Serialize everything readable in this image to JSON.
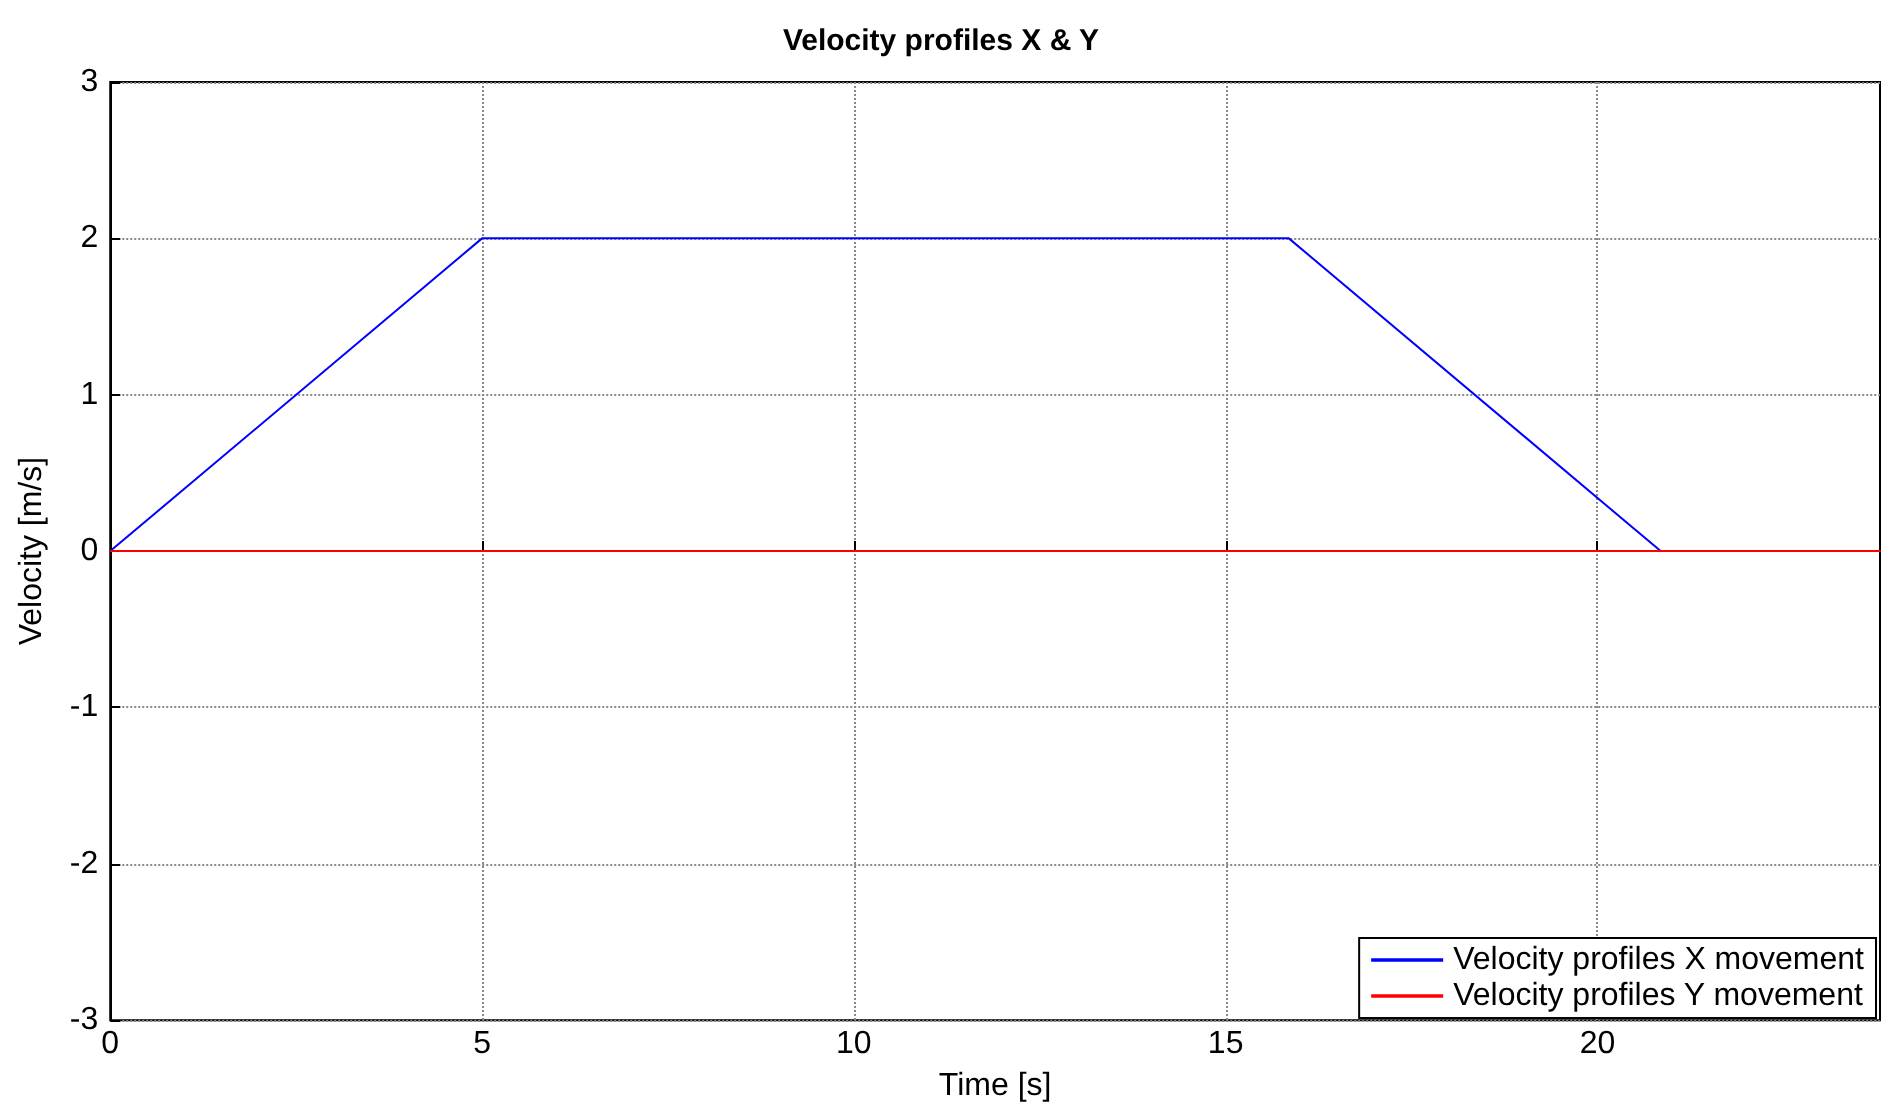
{
  "chart_data": {
    "type": "line",
    "title": "Velocity profiles X & Y",
    "xlabel": "Time [s]",
    "ylabel": "Velocity [m/s]",
    "series": [
      {
        "name": "Velocity profiles X movement",
        "color": "#0000ff",
        "x": [
          0,
          5,
          15.85,
          20.85
        ],
        "values": [
          0,
          2,
          2,
          0
        ]
      },
      {
        "name": "Velocity profiles Y movement",
        "color": "#ff0000",
        "x": [
          0,
          23.8
        ],
        "values": [
          0,
          0
        ]
      }
    ],
    "xlim": [
      0,
      23.8
    ],
    "xticks": [
      0,
      5,
      10,
      15,
      20
    ],
    "ylim": [
      -3,
      3
    ],
    "yticks": [
      -3,
      -2,
      -1,
      0,
      1,
      2,
      3
    ],
    "grid": true,
    "legend": "bottom right",
    "marker": "none",
    "line_style": "solid"
  }
}
